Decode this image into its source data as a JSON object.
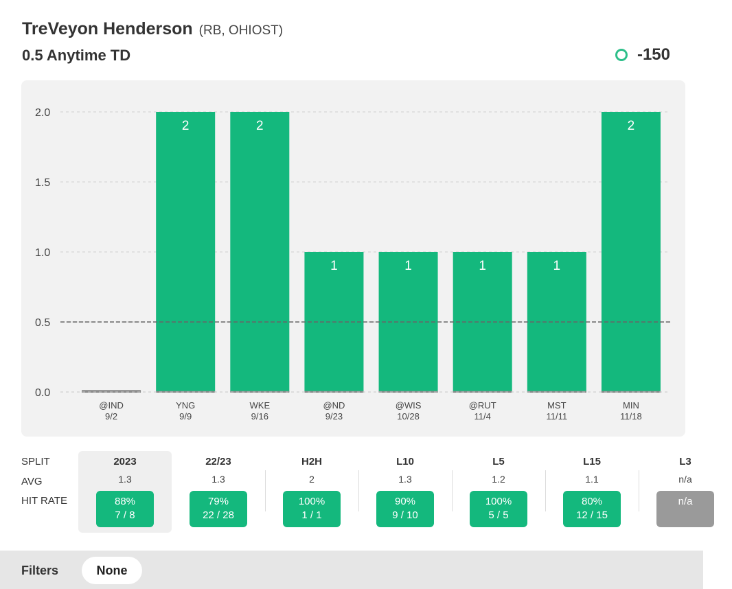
{
  "header": {
    "player_name": "TreVeyon Henderson",
    "player_meta": "(RB, OHIOST)",
    "market": "0.5 Anytime TD",
    "odds": "-150",
    "odds_indicator_color": "#2ebf8a"
  },
  "chart_data": {
    "type": "bar",
    "categories": [
      "@IND",
      "YNG",
      "WKE",
      "@ND",
      "@WIS",
      "@RUT",
      "MST",
      "MIN"
    ],
    "dates": [
      "9/2",
      "9/9",
      "9/16",
      "9/23",
      "10/28",
      "11/4",
      "11/11",
      "11/18"
    ],
    "values": [
      0,
      2,
      2,
      1,
      1,
      1,
      1,
      2
    ],
    "value_labels": [
      "",
      "2",
      "2",
      "1",
      "1",
      "1",
      "1",
      "2"
    ],
    "yticks": [
      "0.0",
      "0.5",
      "1.0",
      "1.5",
      "2.0"
    ],
    "ylim": [
      0,
      2
    ],
    "line_value": 0.5,
    "bar_color": "#14b87d",
    "zero_bar_color": "#9a9a9a",
    "grid": true
  },
  "splits": {
    "row_labels": [
      "SPLIT",
      "AVG",
      "HIT RATE"
    ],
    "columns": [
      {
        "name": "2023",
        "avg": "1.3",
        "hit_pct": "88%",
        "hit_frac": "7 / 8",
        "selected": true
      },
      {
        "name": "22/23",
        "avg": "1.3",
        "hit_pct": "79%",
        "hit_frac": "22 / 28"
      },
      {
        "name": "H2H",
        "avg": "2",
        "hit_pct": "100%",
        "hit_frac": "1 / 1"
      },
      {
        "name": "L10",
        "avg": "1.3",
        "hit_pct": "90%",
        "hit_frac": "9 / 10"
      },
      {
        "name": "L5",
        "avg": "1.2",
        "hit_pct": "100%",
        "hit_frac": "5 / 5"
      },
      {
        "name": "L15",
        "avg": "1.1",
        "hit_pct": "80%",
        "hit_frac": "12 / 15"
      },
      {
        "name": "L3",
        "avg": "n/a",
        "hit_pct": "n/a",
        "hit_frac": "",
        "na": true
      }
    ]
  },
  "filters": {
    "label": "Filters",
    "value": "None"
  }
}
